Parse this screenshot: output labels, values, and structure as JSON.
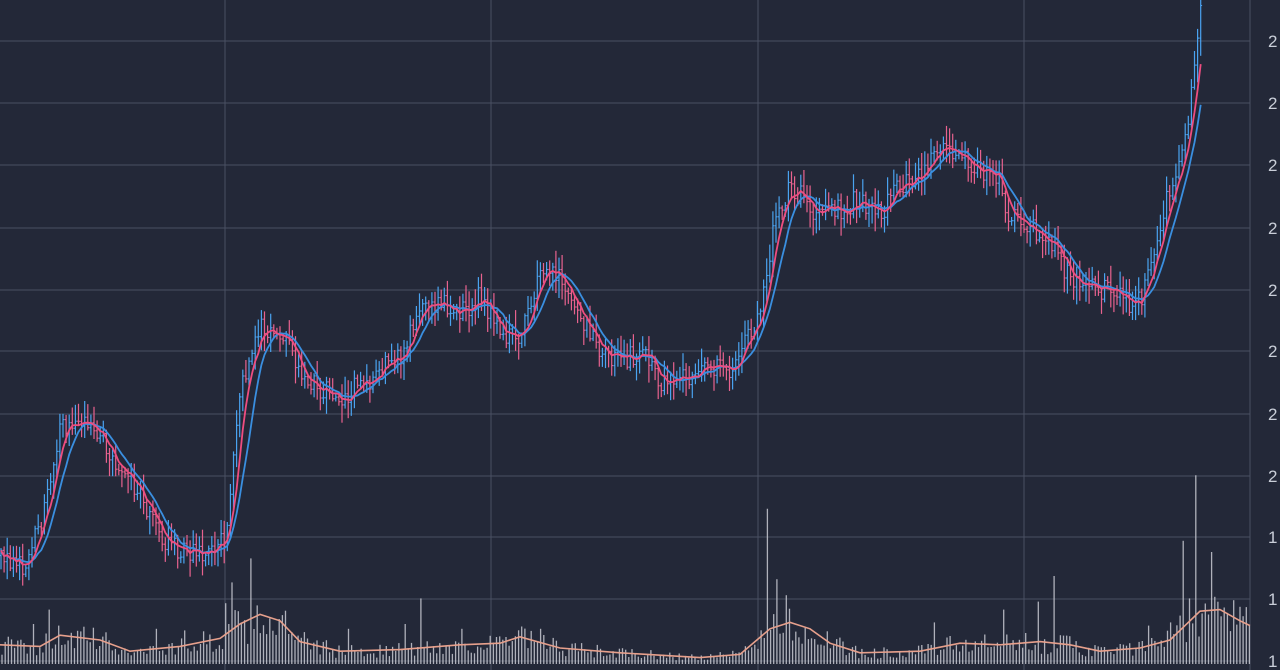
{
  "chart_data": {
    "type": "candlestick",
    "title": "",
    "xlabel": "",
    "ylabel": "",
    "grid": true,
    "colors": {
      "background": "#232838",
      "grid": "#4a5062",
      "axis_text": "#c9ced8",
      "up_wick": "#4aa3f0",
      "down_wick": "#e8628f",
      "ma_fast": "#ee4d80",
      "ma_slow": "#3a8fe0",
      "volume_bar": "#c8cad2",
      "volume_ma": "#e7a08c"
    },
    "price_axis": {
      "tick_labels": [
        "2",
        "2",
        "2",
        "2",
        "2",
        "2",
        "2",
        "2",
        "1",
        "1",
        "1"
      ],
      "note": "right-side tick labels are cut off by the frame; only the leading digit is visible"
    },
    "price_path_keypoints": [
      [
        0,
        90
      ],
      [
        25,
        88
      ],
      [
        45,
        100
      ],
      [
        60,
        118
      ],
      [
        80,
        120
      ],
      [
        100,
        117
      ],
      [
        130,
        107
      ],
      [
        160,
        94
      ],
      [
        185,
        91
      ],
      [
        210,
        91
      ],
      [
        225,
        94
      ],
      [
        240,
        128
      ],
      [
        260,
        141
      ],
      [
        285,
        138
      ],
      [
        305,
        129
      ],
      [
        320,
        128
      ],
      [
        340,
        125
      ],
      [
        370,
        130
      ],
      [
        400,
        135
      ],
      [
        420,
        147
      ],
      [
        440,
        147
      ],
      [
        460,
        145
      ],
      [
        480,
        148
      ],
      [
        500,
        140
      ],
      [
        520,
        140
      ],
      [
        540,
        154
      ],
      [
        555,
        154
      ],
      [
        575,
        145
      ],
      [
        600,
        136
      ],
      [
        620,
        134
      ],
      [
        640,
        136
      ],
      [
        660,
        129
      ],
      [
        680,
        130
      ],
      [
        700,
        131
      ],
      [
        730,
        132
      ],
      [
        760,
        145
      ],
      [
        775,
        166
      ],
      [
        790,
        173
      ],
      [
        805,
        170
      ],
      [
        820,
        166
      ],
      [
        840,
        168
      ],
      [
        860,
        170
      ],
      [
        880,
        167
      ],
      [
        900,
        173
      ],
      [
        920,
        176
      ],
      [
        940,
        183
      ],
      [
        960,
        180
      ],
      [
        980,
        176
      ],
      [
        995,
        177
      ],
      [
        1010,
        166
      ],
      [
        1030,
        164
      ],
      [
        1050,
        160
      ],
      [
        1070,
        152
      ],
      [
        1090,
        150
      ],
      [
        1110,
        150
      ],
      [
        1125,
        147
      ],
      [
        1140,
        147
      ],
      [
        1155,
        158
      ],
      [
        1170,
        173
      ],
      [
        1180,
        178
      ],
      [
        1190,
        190
      ],
      [
        1200,
        212
      ]
    ],
    "volume_path_keypoints": [
      [
        0,
        1.2
      ],
      [
        40,
        1.1
      ],
      [
        60,
        1.8
      ],
      [
        100,
        1.5
      ],
      [
        130,
        0.8
      ],
      [
        180,
        1.1
      ],
      [
        220,
        1.6
      ],
      [
        240,
        2.5
      ],
      [
        260,
        3.1
      ],
      [
        280,
        2.7
      ],
      [
        300,
        1.4
      ],
      [
        340,
        0.8
      ],
      [
        400,
        0.9
      ],
      [
        460,
        1.2
      ],
      [
        500,
        1.3
      ],
      [
        520,
        1.7
      ],
      [
        560,
        1.0
      ],
      [
        620,
        0.7
      ],
      [
        700,
        0.4
      ],
      [
        740,
        0.6
      ],
      [
        770,
        2.2
      ],
      [
        790,
        2.6
      ],
      [
        810,
        2.2
      ],
      [
        830,
        1.3
      ],
      [
        860,
        0.7
      ],
      [
        920,
        0.8
      ],
      [
        960,
        1.3
      ],
      [
        1000,
        1.2
      ],
      [
        1040,
        1.4
      ],
      [
        1070,
        1.2
      ],
      [
        1100,
        0.8
      ],
      [
        1140,
        1.0
      ],
      [
        1170,
        1.5
      ],
      [
        1200,
        3.3
      ],
      [
        1220,
        3.4
      ],
      [
        1240,
        2.7
      ],
      [
        1250,
        2.4
      ]
    ],
    "volume_spikes": [
      [
        35,
        2.5
      ],
      [
        50,
        3.4
      ],
      [
        58,
        2.4
      ],
      [
        155,
        2.2
      ],
      [
        185,
        2.1
      ],
      [
        225,
        3.8
      ],
      [
        232,
        5.1
      ],
      [
        238,
        3.3
      ],
      [
        250,
        6.6
      ],
      [
        348,
        2.2
      ],
      [
        405,
        2.5
      ],
      [
        422,
        4.1
      ],
      [
        462,
        2.2
      ],
      [
        540,
        2.2
      ],
      [
        768,
        9.7
      ],
      [
        776,
        5.3
      ],
      [
        785,
        4.3
      ],
      [
        935,
        2.6
      ],
      [
        1005,
        3.4
      ],
      [
        1038,
        3.9
      ],
      [
        1055,
        5.5
      ],
      [
        1150,
        2.4
      ],
      [
        1170,
        2.6
      ],
      [
        1184,
        7.7
      ],
      [
        1190,
        4.1
      ],
      [
        1196,
        11.8
      ],
      [
        1212,
        7.0
      ],
      [
        1216,
        4.2
      ]
    ]
  }
}
